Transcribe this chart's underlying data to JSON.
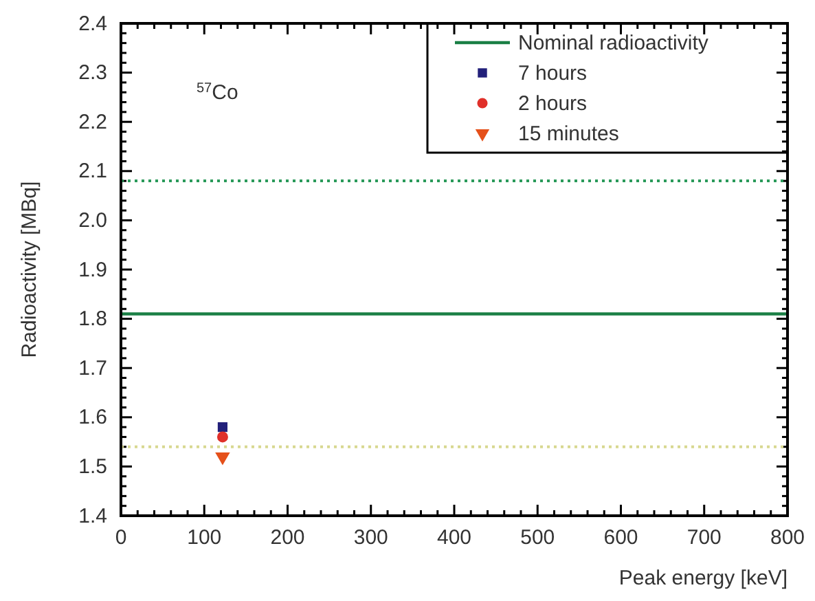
{
  "chart_data": {
    "type": "scatter",
    "xlabel": "Peak energy [keV]",
    "ylabel": "Radioactivity [MBq]",
    "annotations": [
      "$^{57}$Co"
    ],
    "xlim": [
      0,
      800
    ],
    "ylim": [
      1.4,
      2.4
    ],
    "xticks": [
      0,
      {
        "value": 20,
        "label": null
      },
      {
        "value": 40,
        "label": null
      },
      {
        "value": 60,
        "label": null
      },
      {
        "value": 80,
        "label": null
      },
      100,
      {
        "value": 120,
        "label": null
      },
      {
        "value": 140,
        "label": null
      },
      {
        "value": 160,
        "label": null
      },
      {
        "value": 180,
        "label": null
      },
      200,
      {
        "value": 220,
        "label": null
      },
      {
        "value": 240,
        "label": null
      },
      {
        "value": 260,
        "label": null
      },
      {
        "value": 280,
        "label": null
      },
      300,
      {
        "value": 320,
        "label": null
      },
      {
        "value": 340,
        "label": null
      },
      {
        "value": 360,
        "label": null
      },
      {
        "value": 380,
        "label": null
      },
      400,
      {
        "value": 420,
        "label": null
      },
      {
        "value": 440,
        "label": null
      },
      {
        "value": 460,
        "label": null
      },
      {
        "value": 480,
        "label": null
      },
      500,
      {
        "value": 520,
        "label": null
      },
      {
        "value": 540,
        "label": null
      },
      {
        "value": 560,
        "label": null
      },
      {
        "value": 580,
        "label": null
      },
      600,
      {
        "value": 620,
        "label": null
      },
      {
        "value": 640,
        "label": null
      },
      {
        "value": 660,
        "label": null
      },
      {
        "value": 680,
        "label": null
      },
      700,
      {
        "value": 720,
        "label": null
      },
      {
        "value": 740,
        "label": null
      },
      {
        "value": 760,
        "label": null
      },
      {
        "value": 780,
        "label": null
      },
      800
    ],
    "yticks": [
      {
        "value": 1.4,
        "label": "1.4"
      },
      {
        "value": 1.42,
        "label": null
      },
      {
        "value": 1.44,
        "label": null
      },
      {
        "value": 1.46,
        "label": null
      },
      {
        "value": 1.48,
        "label": null
      },
      {
        "value": 1.5,
        "label": "1.5"
      },
      {
        "value": 1.52,
        "label": null
      },
      {
        "value": 1.54,
        "label": null
      },
      {
        "value": 1.56,
        "label": null
      },
      {
        "value": 1.58,
        "label": null
      },
      {
        "value": 1.6,
        "label": "1.6"
      },
      {
        "value": 1.62,
        "label": null
      },
      {
        "value": 1.64,
        "label": null
      },
      {
        "value": 1.66,
        "label": null
      },
      {
        "value": 1.68,
        "label": null
      },
      {
        "value": 1.7,
        "label": "1.7"
      },
      {
        "value": 1.72,
        "label": null
      },
      {
        "value": 1.74,
        "label": null
      },
      {
        "value": 1.76,
        "label": null
      },
      {
        "value": 1.78,
        "label": null
      },
      {
        "value": 1.8,
        "label": "1.8"
      },
      {
        "value": 1.82,
        "label": null
      },
      {
        "value": 1.84,
        "label": null
      },
      {
        "value": 1.86,
        "label": null
      },
      {
        "value": 1.88,
        "label": null
      },
      {
        "value": 1.9,
        "label": "1.9"
      },
      {
        "value": 1.92,
        "label": null
      },
      {
        "value": 1.94,
        "label": null
      },
      {
        "value": 1.96,
        "label": null
      },
      {
        "value": 1.98,
        "label": null
      },
      {
        "value": 2.0,
        "label": "2.0"
      },
      {
        "value": 2.02,
        "label": null
      },
      {
        "value": 2.04,
        "label": null
      },
      {
        "value": 2.06,
        "label": null
      },
      {
        "value": 2.08,
        "label": null
      },
      {
        "value": 2.1,
        "label": "2.1"
      },
      {
        "value": 2.12,
        "label": null
      },
      {
        "value": 2.14,
        "label": null
      },
      {
        "value": 2.16,
        "label": null
      },
      {
        "value": 2.18,
        "label": null
      },
      {
        "value": 2.2,
        "label": "2.2"
      },
      {
        "value": 2.22,
        "label": null
      },
      {
        "value": 2.24,
        "label": null
      },
      {
        "value": 2.26,
        "label": null
      },
      {
        "value": 2.28,
        "label": null
      },
      {
        "value": 2.3,
        "label": "2.3"
      },
      {
        "value": 2.32,
        "label": null
      },
      {
        "value": 2.34,
        "label": null
      },
      {
        "value": 2.36,
        "label": null
      },
      {
        "value": 2.38,
        "label": null
      },
      {
        "value": 2.4,
        "label": "2.4"
      }
    ],
    "series": [
      {
        "name": "Nominal radioactivity",
        "type": "line",
        "color": "#1a7f45",
        "x": [
          0,
          800
        ],
        "values": [
          1.81,
          1.81
        ],
        "marker": "none",
        "line_style": "solid"
      },
      {
        "name": "7 hours",
        "color": "#22207a",
        "x": [
          122
        ],
        "values": [
          1.58
        ],
        "marker": "square"
      },
      {
        "name": "2 hours",
        "color": "#e0302a",
        "x": [
          122
        ],
        "values": [
          1.56
        ],
        "marker": "circle"
      },
      {
        "name": "15 minutes",
        "color": "#e5501a",
        "x": [
          122
        ],
        "values": [
          1.52
        ],
        "marker": "triangle-down"
      }
    ],
    "ref_lines": [
      {
        "axis": "y",
        "value": 2.08,
        "color": "#2a9a5a",
        "line_style": "dotted"
      },
      {
        "axis": "y",
        "value": 1.54,
        "color": "#d8d890",
        "line_style": "dotted"
      }
    ],
    "legend": "top right",
    "grid": false
  }
}
